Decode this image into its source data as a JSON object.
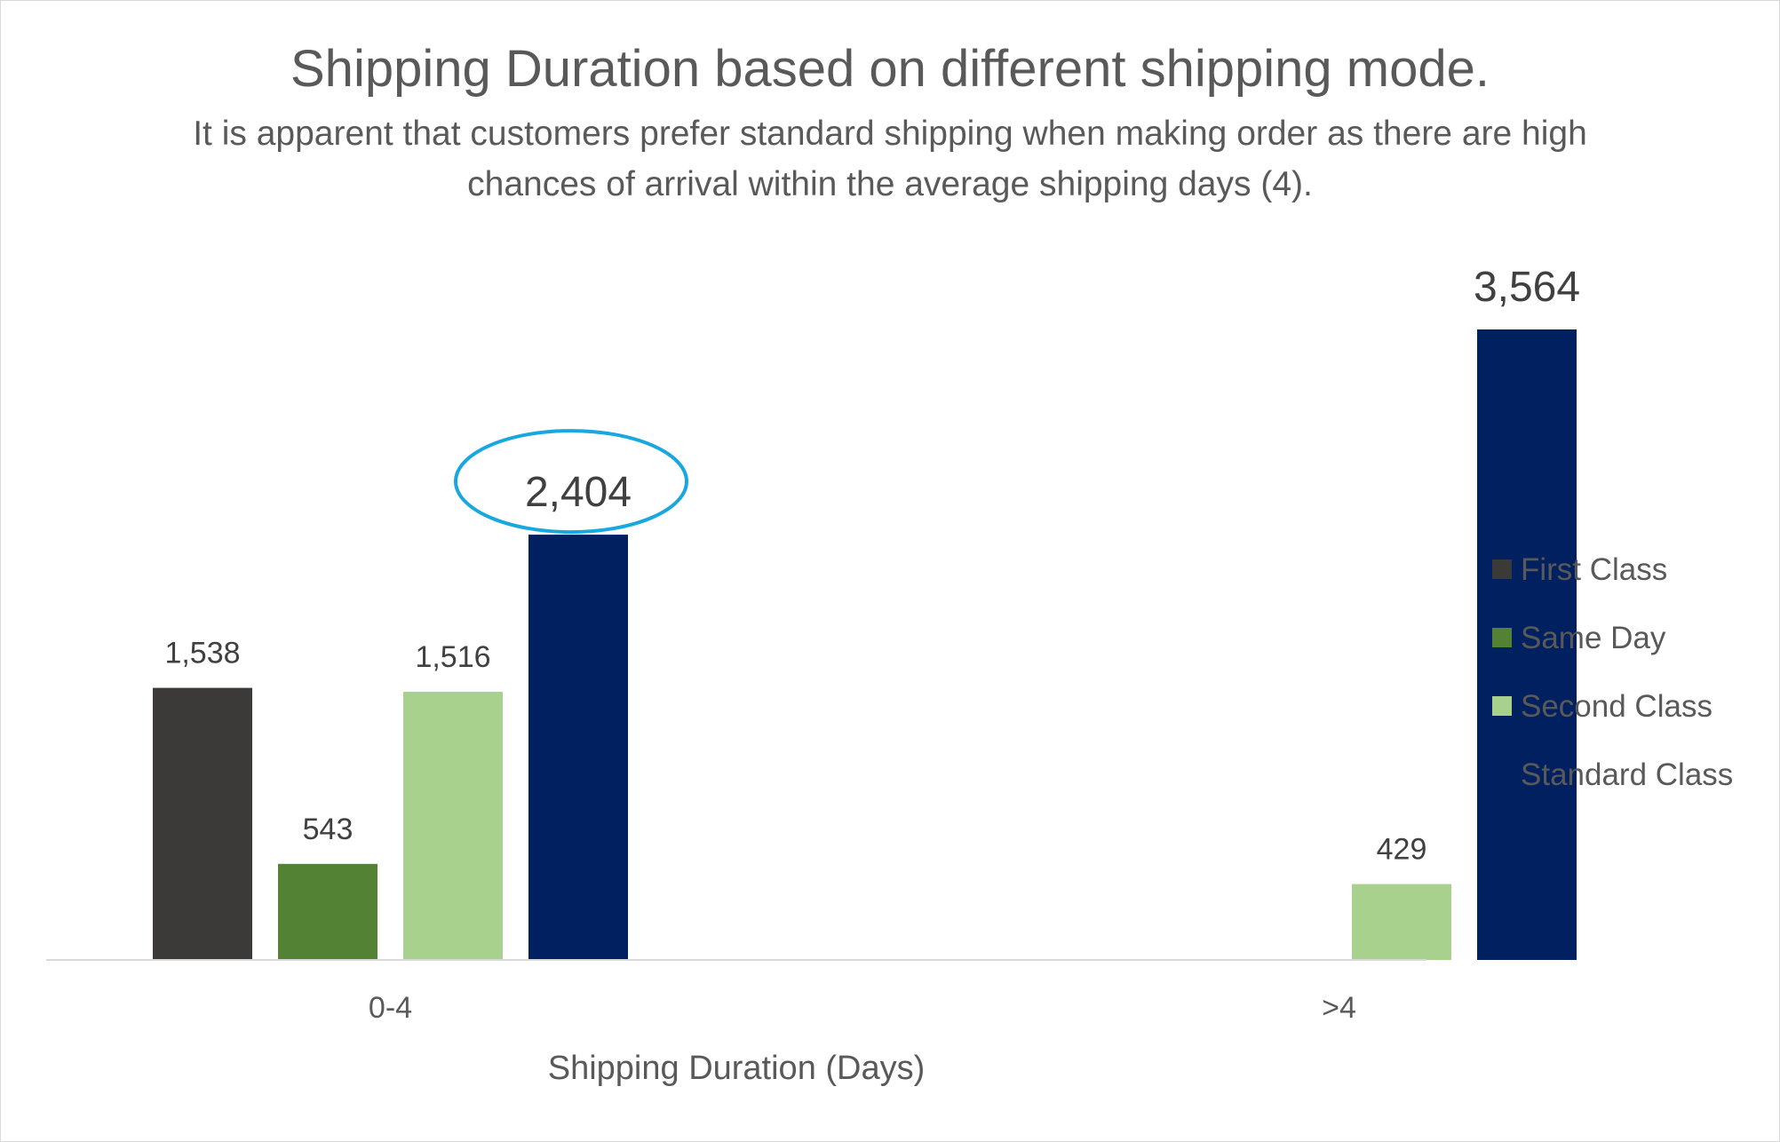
{
  "chart_data": {
    "type": "bar",
    "title": "Shipping Duration based on different shipping mode.",
    "subtitle": "It is apparent that customers prefer standard shipping when making order as there are high chances of arrival within the average shipping days (4).",
    "xlabel": "Shipping Duration (Days)",
    "ylabel": "",
    "categories": [
      "0-4",
      ">4"
    ],
    "ylim": [
      0,
      3600
    ],
    "grid": false,
    "legend_position": "right",
    "series": [
      {
        "name": "First Class",
        "color": "#3b3a38",
        "values": [
          1538,
          null
        ],
        "labels": [
          "1,538",
          ""
        ]
      },
      {
        "name": "Same Day",
        "color": "#548235",
        "values": [
          543,
          null
        ],
        "labels": [
          "543",
          ""
        ]
      },
      {
        "name": "Second Class",
        "color": "#a9d18e",
        "values": [
          1516,
          429
        ],
        "labels": [
          "1,516",
          "429"
        ]
      },
      {
        "name": "Standard Class",
        "color": "#002060",
        "values": [
          2404,
          3564
        ],
        "labels": [
          "2,404",
          "3,564"
        ]
      }
    ],
    "highlight": {
      "series": "Standard Class",
      "category": "0-4",
      "color": "#1aa7e0"
    }
  }
}
